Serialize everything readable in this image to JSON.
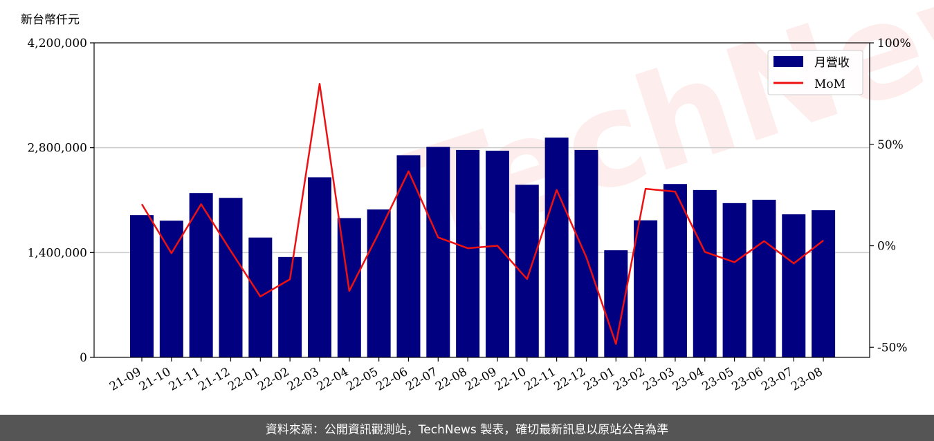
{
  "watermark": "TechNews",
  "footer_text": "資料來源：公開資訊觀測站，TechNews 製表，確切最新訊息以原站公告為準",
  "chart_data": {
    "type": "bar",
    "unit_label": "新台幣仟元",
    "categories": [
      "21-09",
      "21-10",
      "21-11",
      "21-12",
      "22-01",
      "22-02",
      "22-03",
      "22-04",
      "22-05",
      "22-06",
      "22-07",
      "22-08",
      "22-09",
      "22-10",
      "22-11",
      "22-12",
      "23-01",
      "23-02",
      "23-03",
      "23-04",
      "23-05",
      "23-06",
      "23-07",
      "23-08"
    ],
    "series": [
      {
        "name": "月營收",
        "axis": "left",
        "type": "bar",
        "color": "#000080",
        "values": [
          1900000,
          1825000,
          2195000,
          2130000,
          1600000,
          1340000,
          2405000,
          1860000,
          1975000,
          2700000,
          2810000,
          2770000,
          2760000,
          2305000,
          2935000,
          2770000,
          1430000,
          1830000,
          2315000,
          2235000,
          2060000,
          2105000,
          1910000,
          1965000
        ]
      },
      {
        "name": "MoM",
        "axis": "right",
        "type": "line",
        "color": "#ee1111",
        "values": [
          20.5,
          -3.7,
          20.5,
          -2.5,
          -25.0,
          -16.5,
          79.8,
          -22.3,
          6.4,
          36.7,
          4.1,
          -1.2,
          0.0,
          -16.4,
          27.5,
          -5.6,
          -48.4,
          28.1,
          26.7,
          -3.0,
          -8.1,
          2.3,
          -8.7,
          2.6
        ]
      }
    ],
    "y_left": {
      "ylim": [
        0,
        4200000
      ],
      "ticks": [
        0,
        1400000,
        2800000,
        4200000
      ],
      "tick_labels": [
        "0",
        "1,400,000",
        "2,800,000",
        "4,200,000"
      ]
    },
    "y_right": {
      "ylim": [
        -55,
        100
      ],
      "ticks": [
        -50,
        0,
        50,
        100
      ],
      "tick_labels": [
        "-50%",
        "0%",
        "50%",
        "100%"
      ]
    },
    "grid": "horizontal",
    "legend": {
      "position": "top-right",
      "entries": [
        "月營收",
        "MoM"
      ]
    }
  }
}
